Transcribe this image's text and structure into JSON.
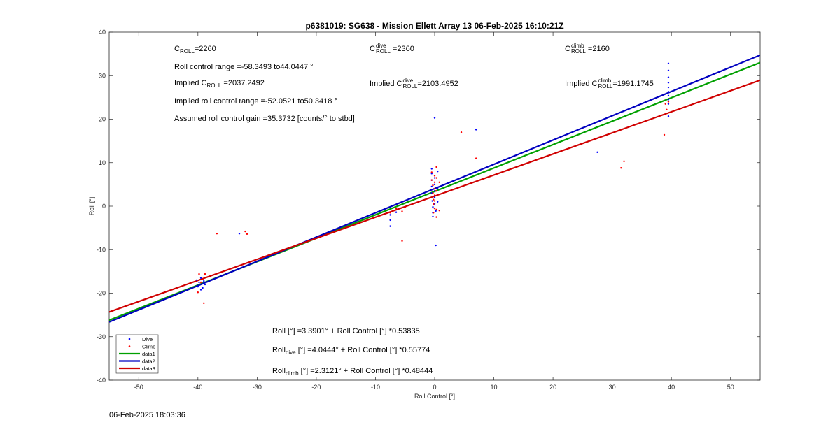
{
  "chart_data": {
    "type": "scatter",
    "title": "p6381019: SG638 - Mission Ellett Array 13 06-Feb-2025 16:10:21Z",
    "xlabel": "Roll Control [°]",
    "ylabel": "Roll [°]",
    "xlim": [
      -55,
      55
    ],
    "ylim": [
      -40,
      40
    ],
    "xticks": [
      -50,
      -40,
      -30,
      -20,
      -10,
      0,
      10,
      20,
      30,
      40,
      50
    ],
    "yticks": [
      -40,
      -30,
      -20,
      -10,
      0,
      10,
      20,
      30,
      40
    ],
    "grid": false,
    "legend_position": "bottom-left",
    "colors": {
      "dive": "#0000ff",
      "climb": "#ff0000",
      "data1": "#00a000",
      "data2": "#0000c0",
      "data3": "#d00000",
      "axis": "#262626"
    },
    "series": [
      {
        "name": "Dive",
        "kind": "points",
        "color": "#0000ff",
        "points": [
          [
            -40,
            -18.5
          ],
          [
            -39.8,
            -17.5
          ],
          [
            -39.5,
            -19.2
          ],
          [
            -39.5,
            -16.5
          ],
          [
            -39.2,
            -18.8
          ],
          [
            -39,
            -17.2
          ],
          [
            -38.8,
            -18
          ],
          [
            -40.2,
            -17
          ],
          [
            -33,
            -6.3
          ],
          [
            -7.5,
            -2
          ],
          [
            -7.5,
            -3.2
          ],
          [
            -7.5,
            -4.6
          ],
          [
            -6.5,
            -1.4
          ],
          [
            -0.5,
            8.6
          ],
          [
            -0.5,
            7.5
          ],
          [
            -0.5,
            6
          ],
          [
            -0.5,
            4.5
          ],
          [
            -0.5,
            3
          ],
          [
            -0.4,
            1.2
          ],
          [
            -0.3,
            -0.2
          ],
          [
            -0.3,
            -1.5
          ],
          [
            -0.3,
            -2.4
          ],
          [
            0,
            20.3
          ],
          [
            0,
            6.5
          ],
          [
            0,
            5
          ],
          [
            0,
            3.5
          ],
          [
            0,
            2
          ],
          [
            0,
            0.5
          ],
          [
            0,
            -0.5
          ],
          [
            0.2,
            -1.1
          ],
          [
            0.2,
            -9
          ],
          [
            0.5,
            8
          ],
          [
            0.5,
            4
          ],
          [
            0.5,
            1
          ],
          [
            7,
            17.6
          ],
          [
            27.5,
            12.4
          ],
          [
            39.5,
            32.8
          ],
          [
            39.5,
            31.2
          ],
          [
            39.5,
            29.6
          ],
          [
            39.5,
            28.4
          ],
          [
            39.5,
            27.3
          ],
          [
            39.5,
            26.3
          ],
          [
            39.5,
            25.4
          ],
          [
            39.5,
            24.5
          ],
          [
            39.5,
            23.5
          ],
          [
            39.5,
            20.7
          ]
        ]
      },
      {
        "name": "Climb",
        "kind": "points",
        "color": "#ff0000",
        "points": [
          [
            -40,
            -19.8
          ],
          [
            -39.8,
            -15.6
          ],
          [
            -39.5,
            -17.5
          ],
          [
            -39.2,
            -16.8
          ],
          [
            -39,
            -22.3
          ],
          [
            -38.8,
            -15.6
          ],
          [
            -36.8,
            -6.3
          ],
          [
            -32,
            -5.8
          ],
          [
            -31.7,
            -6.4
          ],
          [
            -7.5,
            -1.5
          ],
          [
            -6.5,
            -0.5
          ],
          [
            -5.5,
            -8
          ],
          [
            -5.5,
            -1.2
          ],
          [
            -5,
            -0.3
          ],
          [
            -0.5,
            7.8
          ],
          [
            -0.5,
            6
          ],
          [
            -0.3,
            4.8
          ],
          [
            -0.3,
            3
          ],
          [
            -0.2,
            1.5
          ],
          [
            -0.2,
            0.5
          ],
          [
            -0.2,
            -1.5
          ],
          [
            0,
            7
          ],
          [
            0,
            5.5
          ],
          [
            0,
            4
          ],
          [
            0,
            2.5
          ],
          [
            0,
            1.2
          ],
          [
            0,
            -0.5
          ],
          [
            0.3,
            9
          ],
          [
            0.3,
            6.5
          ],
          [
            0.3,
            3.5
          ],
          [
            0.3,
            -0.8
          ],
          [
            0.3,
            -2.5
          ],
          [
            0.8,
            5.5
          ],
          [
            0.8,
            -1
          ],
          [
            4.5,
            17
          ],
          [
            7,
            11
          ],
          [
            31.5,
            8.8
          ],
          [
            32,
            10.3
          ],
          [
            38.8,
            16.4
          ],
          [
            39,
            23.5
          ],
          [
            39.2,
            22.2
          ],
          [
            39.5,
            24
          ]
        ]
      },
      {
        "name": "data1",
        "kind": "line",
        "color": "#00a000",
        "intercept": 3.3901,
        "slope": 0.53835
      },
      {
        "name": "data2",
        "kind": "line",
        "color": "#0000c0",
        "intercept": 4.0444,
        "slope": 0.55774
      },
      {
        "name": "data3",
        "kind": "line",
        "color": "#d00000",
        "intercept": 2.3121,
        "slope": 0.48444
      }
    ],
    "annotations": {
      "croll": {
        "base": "C",
        "sub": "ROLL",
        "value": "=2260"
      },
      "roll_range": "Roll control range =-58.3493 to44.0447 °",
      "implied_croll": {
        "prefix": "Implied C",
        "sub": "ROLL",
        "value": " =2037.2492"
      },
      "implied_range": "Implied roll control range =-52.0521 to50.3418 °",
      "gain": "Assumed roll control gain =35.3732 [counts/° to stbd]",
      "croll_dive": {
        "base": "C",
        "sup": "dive",
        "sub": "ROLL",
        "value": " =2360"
      },
      "implied_croll_dive": {
        "prefix": "Implied C",
        "sup": "dive",
        "sub": "ROLL",
        "value": "=2103.4952"
      },
      "croll_climb": {
        "base": "C",
        "sup": "climb",
        "sub": "ROLL",
        "value": " =2160"
      },
      "implied_croll_climb": {
        "prefix": "Implied C",
        "sup": "climb",
        "sub": "ROLL",
        "value": "=1991.1745"
      },
      "fit_all": "Roll [°] =3.3901° + Roll Control [°] *0.53835",
      "fit_dive": {
        "prefix": "Roll",
        "sub": "dive",
        "suffix": " [°] =4.0444° + Roll Control [°] *0.55774"
      },
      "fit_climb": {
        "prefix": "Roll",
        "sub": "climb",
        "suffix": " [°] =2.3121° + Roll Control [°] *0.48444"
      }
    }
  },
  "footer_timestamp": "06-Feb-2025 18:03:36"
}
